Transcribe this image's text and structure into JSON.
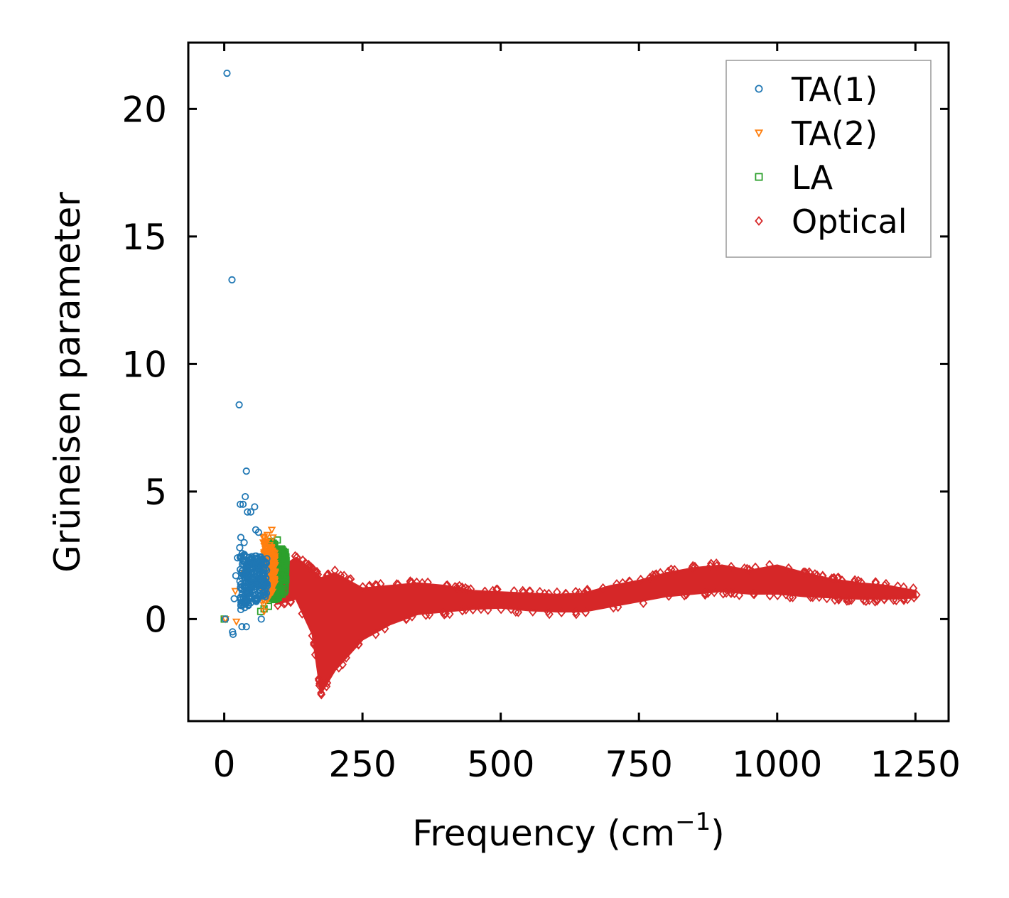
{
  "chart_data": {
    "type": "scatter",
    "title": "",
    "xlabel": "Frequency (cm",
    "xlabel_sup": "−1",
    "xlabel_close": ")",
    "ylabel": "Grüneisen parameter",
    "xlim": [
      -65,
      1310
    ],
    "ylim": [
      -4.0,
      22.6
    ],
    "x_ticks": [
      0,
      250,
      500,
      750,
      1000,
      1250
    ],
    "x_tick_labels": [
      "0",
      "250",
      "500",
      "750",
      "1000",
      "1250"
    ],
    "y_ticks": [
      0,
      5,
      10,
      15,
      20
    ],
    "y_tick_labels": [
      "0",
      "5",
      "10",
      "15",
      "20"
    ],
    "grid": false,
    "legend_position": "top-right",
    "series": [
      {
        "name": "TA(1)",
        "marker": "circle",
        "color": "#1f77b4",
        "outliers": [
          [
            5,
            21.4
          ],
          [
            14,
            13.3
          ],
          [
            27,
            8.4
          ],
          [
            40,
            5.8
          ],
          [
            38,
            4.8
          ],
          [
            29,
            4.5
          ],
          [
            34,
            4.5
          ],
          [
            55,
            4.4
          ],
          [
            42,
            4.2
          ],
          [
            48,
            4.2
          ],
          [
            57,
            3.5
          ],
          [
            62,
            3.4
          ],
          [
            30,
            3.2
          ],
          [
            36,
            3.0
          ],
          [
            28,
            2.8
          ],
          [
            44,
            2.4
          ],
          [
            24,
            2.4
          ],
          [
            21,
            1.7
          ],
          [
            18,
            0.8
          ],
          [
            15,
            -0.5
          ],
          [
            16,
            -0.6
          ],
          [
            32,
            -0.3
          ],
          [
            40,
            -0.3
          ],
          [
            67,
            0.0
          ],
          [
            2,
            0.0
          ]
        ],
        "band": {
          "x_start": 28,
          "x_end": 78,
          "y_low_start": 0.3,
          "y_high_start": 2.6,
          "y_low_end": 0.9,
          "y_high_end": 2.4
        }
      },
      {
        "name": "TA(2)",
        "marker": "triangle-down",
        "color": "#ff7f0e",
        "outliers": [
          [
            20,
            1.1
          ],
          [
            22,
            -0.1
          ],
          [
            2,
            0.0
          ],
          [
            36,
            1.8
          ],
          [
            72,
            0.3
          ],
          [
            78,
            3.3
          ],
          [
            86,
            3.5
          ],
          [
            88,
            3.2
          ]
        ],
        "band": {
          "x_start": 70,
          "x_end": 92,
          "y_low_start": 0.5,
          "y_high_start": 3.3,
          "y_low_end": 1.2,
          "y_high_end": 2.6
        }
      },
      {
        "name": "LA",
        "marker": "square",
        "color": "#2ca02c",
        "outliers": [
          [
            0,
            0.0
          ],
          [
            66,
            0.3
          ],
          [
            72,
            0.4
          ],
          [
            80,
            0.5
          ],
          [
            96,
            3.1
          ]
        ],
        "band": {
          "x_start": 84,
          "x_end": 112,
          "y_low_start": 0.6,
          "y_high_start": 3.1,
          "y_low_end": 1.1,
          "y_high_end": 2.6
        }
      },
      {
        "name": "Optical",
        "marker": "diamond",
        "color": "#d62728",
        "envelope": [
          {
            "x": 95,
            "low": 0.6,
            "high": 1.9
          },
          {
            "x": 130,
            "low": 0.8,
            "high": 2.4
          },
          {
            "x": 160,
            "low": -0.6,
            "high": 1.9
          },
          {
            "x": 175,
            "low": -2.9,
            "high": 1.6
          },
          {
            "x": 200,
            "low": -2.0,
            "high": 1.8
          },
          {
            "x": 250,
            "low": -0.8,
            "high": 1.2
          },
          {
            "x": 300,
            "low": -0.2,
            "high": 1.3
          },
          {
            "x": 350,
            "low": 0.2,
            "high": 1.4
          },
          {
            "x": 400,
            "low": 0.3,
            "high": 1.3
          },
          {
            "x": 450,
            "low": 0.4,
            "high": 1.1
          },
          {
            "x": 500,
            "low": 0.45,
            "high": 1.05
          },
          {
            "x": 550,
            "low": 0.35,
            "high": 1.0
          },
          {
            "x": 600,
            "low": 0.3,
            "high": 0.95
          },
          {
            "x": 650,
            "low": 0.3,
            "high": 1.0
          },
          {
            "x": 700,
            "low": 0.5,
            "high": 1.3
          },
          {
            "x": 750,
            "low": 0.7,
            "high": 1.5
          },
          {
            "x": 800,
            "low": 0.9,
            "high": 1.8
          },
          {
            "x": 850,
            "low": 1.0,
            "high": 2.0
          },
          {
            "x": 900,
            "low": 1.1,
            "high": 2.1
          },
          {
            "x": 950,
            "low": 1.0,
            "high": 1.9
          },
          {
            "x": 1000,
            "low": 1.0,
            "high": 2.1
          },
          {
            "x": 1050,
            "low": 0.9,
            "high": 1.8
          },
          {
            "x": 1100,
            "low": 0.85,
            "high": 1.55
          },
          {
            "x": 1150,
            "low": 0.8,
            "high": 1.4
          },
          {
            "x": 1200,
            "low": 0.8,
            "high": 1.3
          },
          {
            "x": 1250,
            "low": 0.85,
            "high": 1.1
          }
        ],
        "outliers": [
          [
            175,
            -2.9
          ],
          [
            172,
            -2.6
          ],
          [
            1252,
            0.95
          ]
        ]
      }
    ]
  }
}
